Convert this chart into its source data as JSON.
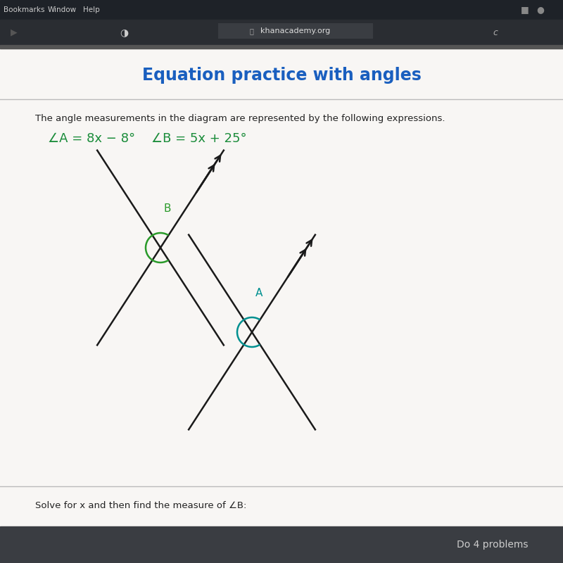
{
  "title": "Equation practice with angles",
  "title_color": "#1a5fbf",
  "subtitle": "The angle measurements in the diagram are represented by the following expressions.",
  "expr_A": "∠A = 8x − 8°",
  "expr_B": "∠B = 5x + 25°",
  "bottom_text": "Solve for x and then find the measure of ∠B:",
  "footer_text": "Do 4 problems",
  "chrome_bg": "#1e2228",
  "chrome_text": "#cccccc",
  "content_bg": "#f0eeec",
  "title_bg": "#f0eeec",
  "white_bg": "#f5f3f1",
  "expr_color_A": "#1a8c3a",
  "expr_color_B": "#1a8c3a",
  "label_B_color": "#2a9a2a",
  "label_A_color": "#009090",
  "arc_B_color": "#2a9a2a",
  "arc_A_color": "#009090",
  "line_color": "#1a1a1a",
  "footer_bg": "#3a3d42",
  "sep_color": "#bbbbbb"
}
